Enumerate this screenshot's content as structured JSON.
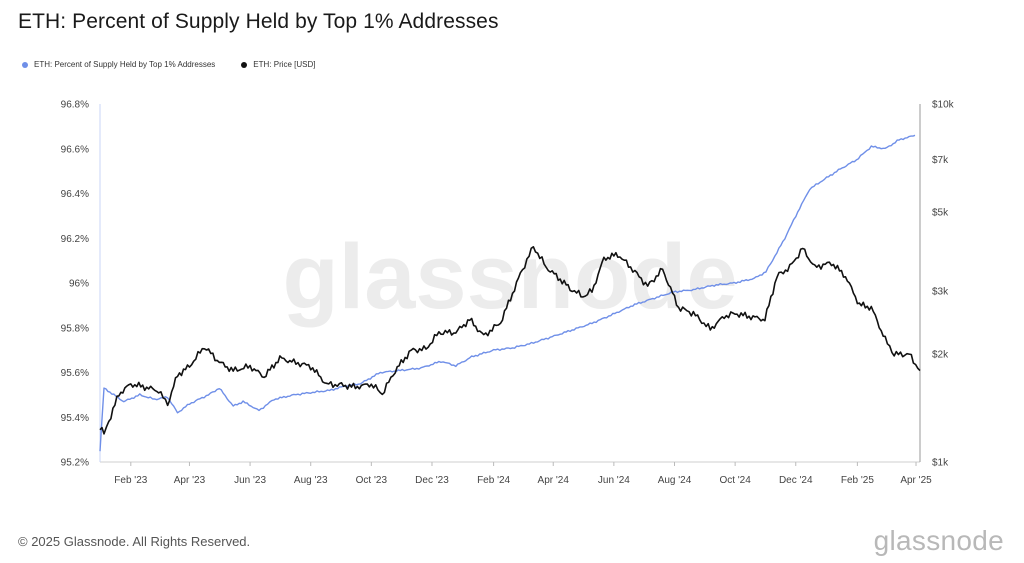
{
  "title": "ETH: Percent of Supply Held by Top 1% Addresses",
  "legend": [
    {
      "label": "ETH: Percent of Supply Held by Top 1% Addresses",
      "color": "#6f8fe8"
    },
    {
      "label": "ETH: Price [USD]",
      "color": "#111111"
    }
  ],
  "footer": "© 2025 Glassnode. All Rights Reserved.",
  "brand": "glassnode",
  "watermark": "glassnode",
  "chart_data": {
    "type": "line",
    "x_ticks": [
      "Feb '23",
      "Apr '23",
      "Jun '23",
      "Aug '23",
      "Oct '23",
      "Dec '23",
      "Feb '24",
      "Apr '24",
      "Jun '24",
      "Aug '24",
      "Oct '24",
      "Dec '24",
      "Feb '25",
      "Apr '25"
    ],
    "y_left": {
      "ticks": [
        "95.2%",
        "95.4%",
        "95.6%",
        "95.8%",
        "96%",
        "96.2%",
        "96.4%",
        "96.6%",
        "96.8%"
      ],
      "range": [
        95.2,
        96.8
      ]
    },
    "y_right": {
      "ticks": [
        "$1k",
        "$2k",
        "$3k",
        "$5k",
        "$7k",
        "$10k"
      ],
      "tick_values": [
        1000,
        2000,
        3000,
        5000,
        7000,
        10000
      ],
      "range": [
        1000,
        10000
      ],
      "scale": "log"
    },
    "grid": false,
    "legend_placement": "top-left",
    "series": [
      {
        "name": "ETH: Percent of Supply Held by Top 1% Addresses",
        "axis": "left",
        "color": "#6f8fe8",
        "x": [
          "2023-01-01",
          "2023-01-05",
          "2023-01-15",
          "2023-01-25",
          "2023-02-10",
          "2023-02-25",
          "2023-03-10",
          "2023-03-20",
          "2023-04-01",
          "2023-04-20",
          "2023-05-01",
          "2023-05-15",
          "2023-05-25",
          "2023-06-10",
          "2023-06-25",
          "2023-07-15",
          "2023-08-01",
          "2023-08-20",
          "2023-09-05",
          "2023-09-20",
          "2023-10-10",
          "2023-11-01",
          "2023-11-20",
          "2023-12-10",
          "2023-12-25",
          "2024-01-10",
          "2024-02-01",
          "2024-02-20",
          "2024-03-10",
          "2024-03-31",
          "2024-04-20",
          "2024-05-10",
          "2024-05-31",
          "2024-06-20",
          "2024-07-10",
          "2024-07-31",
          "2024-08-20",
          "2024-09-10",
          "2024-09-30",
          "2024-10-20",
          "2024-11-01",
          "2024-11-10",
          "2024-11-20",
          "2024-12-01",
          "2024-12-15",
          "2025-01-01",
          "2025-01-15",
          "2025-01-31",
          "2025-02-15",
          "2025-03-01",
          "2025-03-15",
          "2025-03-31"
        ],
        "values": [
          95.25,
          95.53,
          95.5,
          95.47,
          95.5,
          95.48,
          95.49,
          95.42,
          95.46,
          95.5,
          95.53,
          95.45,
          95.47,
          95.43,
          95.48,
          95.5,
          95.51,
          95.52,
          95.54,
          95.55,
          95.6,
          95.61,
          95.62,
          95.65,
          95.63,
          95.67,
          95.7,
          95.71,
          95.73,
          95.76,
          95.79,
          95.82,
          95.86,
          95.9,
          95.93,
          95.96,
          95.97,
          95.99,
          96.0,
          96.02,
          96.05,
          96.12,
          96.2,
          96.3,
          96.42,
          96.47,
          96.51,
          96.55,
          96.61,
          96.6,
          96.64,
          96.66
        ]
      },
      {
        "name": "ETH: Price [USD]",
        "axis": "right",
        "color": "#111111",
        "x": [
          "2023-01-01",
          "2023-01-05",
          "2023-01-10",
          "2023-01-20",
          "2023-02-01",
          "2023-02-15",
          "2023-03-01",
          "2023-03-10",
          "2023-03-20",
          "2023-04-01",
          "2023-04-16",
          "2023-05-01",
          "2023-05-15",
          "2023-06-01",
          "2023-06-15",
          "2023-07-01",
          "2023-07-15",
          "2023-08-01",
          "2023-08-17",
          "2023-09-01",
          "2023-09-15",
          "2023-10-01",
          "2023-10-12",
          "2023-10-25",
          "2023-11-10",
          "2023-11-25",
          "2023-12-08",
          "2023-12-25",
          "2024-01-08",
          "2024-01-22",
          "2024-02-08",
          "2024-02-28",
          "2024-03-12",
          "2024-03-25",
          "2024-04-10",
          "2024-04-18",
          "2024-05-01",
          "2024-05-10",
          "2024-05-22",
          "2024-06-05",
          "2024-06-20",
          "2024-07-05",
          "2024-07-20",
          "2024-08-05",
          "2024-08-20",
          "2024-09-06",
          "2024-09-20",
          "2024-10-01",
          "2024-10-15",
          "2024-10-31",
          "2024-11-12",
          "2024-11-25",
          "2024-12-08",
          "2024-12-20",
          "2025-01-06",
          "2025-01-20",
          "2025-02-03",
          "2025-02-15",
          "2025-03-01",
          "2025-03-10",
          "2025-03-25",
          "2025-04-05"
        ],
        "values": [
          1250,
          1200,
          1300,
          1550,
          1650,
          1620,
          1580,
          1450,
          1750,
          1850,
          2100,
          1900,
          1800,
          1850,
          1730,
          1950,
          1900,
          1850,
          1650,
          1640,
          1620,
          1650,
          1550,
          1800,
          2050,
          2070,
          2300,
          2300,
          2500,
          2250,
          2450,
          3350,
          4000,
          3500,
          3200,
          3050,
          2900,
          3000,
          3700,
          3800,
          3450,
          3100,
          3450,
          2700,
          2600,
          2350,
          2550,
          2600,
          2550,
          2500,
          3300,
          3500,
          3950,
          3500,
          3600,
          3300,
          2750,
          2700,
          2200,
          2000,
          2000,
          1800
        ]
      }
    ]
  }
}
